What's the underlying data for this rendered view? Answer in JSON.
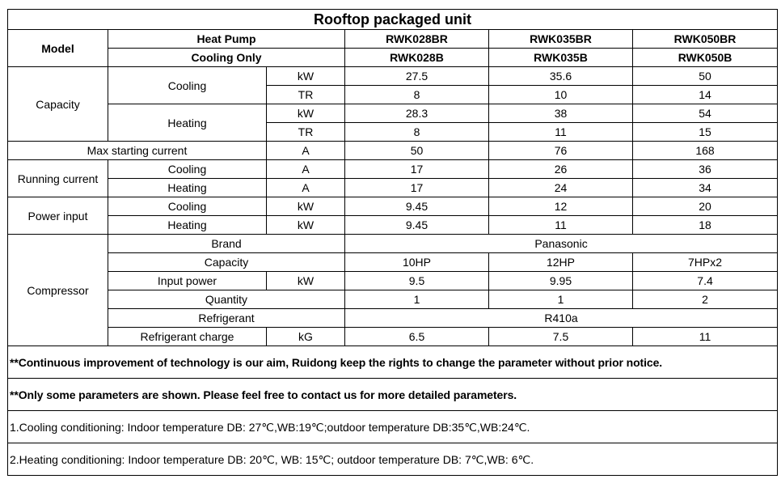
{
  "title": "Rooftop packaged unit",
  "header": {
    "model": "Model",
    "heat_pump": "Heat Pump",
    "cooling_only": "Cooling Only",
    "heat_pump_models": [
      "RWK028BR",
      "RWK035BR",
      "RWK050BR"
    ],
    "cooling_only_models": [
      "RWK028B",
      "RWK035B",
      "RWK050B"
    ]
  },
  "rows": {
    "capacity": {
      "label": "Capacity",
      "cooling": "Cooling",
      "heating": "Heating",
      "cooling_kw": {
        "unit": "kW",
        "values": [
          "27.5",
          "35.6",
          "50"
        ]
      },
      "cooling_tr": {
        "unit": "TR",
        "values": [
          "8",
          "10",
          "14"
        ]
      },
      "heating_kw": {
        "unit": "kW",
        "values": [
          "28.3",
          "38",
          "54"
        ]
      },
      "heating_tr": {
        "unit": "TR",
        "values": [
          "8",
          "11",
          "15"
        ]
      }
    },
    "max_starting": {
      "label": "Max starting current",
      "unit": "A",
      "values": [
        "50",
        "76",
        "168"
      ]
    },
    "running": {
      "label": "Running current",
      "cooling": {
        "label": "Cooling",
        "unit": "A",
        "values": [
          "17",
          "26",
          "36"
        ]
      },
      "heating": {
        "label": "Heating",
        "unit": "A",
        "values": [
          "17",
          "24",
          "34"
        ]
      }
    },
    "power": {
      "label": "Power input",
      "cooling": {
        "label": "Cooling",
        "unit": "kW",
        "values": [
          "9.45",
          "12",
          "20"
        ]
      },
      "heating": {
        "label": "Heating",
        "unit": "kW",
        "values": [
          "9.45",
          "11",
          "18"
        ]
      }
    },
    "compressor": {
      "label": "Compressor",
      "brand": {
        "label": "Brand",
        "value": "Panasonic"
      },
      "capacity": {
        "label": "Capacity",
        "values": [
          "10HP",
          "12HP",
          "7HPx2"
        ]
      },
      "input_power": {
        "label": "Input power",
        "unit": "kW",
        "values": [
          "9.5",
          "9.95",
          "7.4"
        ]
      },
      "quantity": {
        "label": "Quantity",
        "values": [
          "1",
          "1",
          "2"
        ]
      },
      "refrigerant": {
        "label": "Refrigerant",
        "value": "R410a"
      },
      "charge": {
        "label": "Refrigerant charge",
        "unit": "kG",
        "values": [
          "6.5",
          "7.5",
          "11"
        ]
      }
    }
  },
  "notes": [
    "**Continuous improvement of technology is our aim, Ruidong keep the rights to change the parameter without prior notice.",
    "**Only some parameters are shown. Please feel free to contact us for more detailed parameters.",
    "1.Cooling conditioning: Indoor temperature DB: 27℃,WB:19℃;outdoor temperature DB:35℃,WB:24℃.",
    "2.Heating conditioning: Indoor temperature DB: 20℃, WB: 15℃; outdoor temperature DB: 7℃,WB: 6℃."
  ]
}
